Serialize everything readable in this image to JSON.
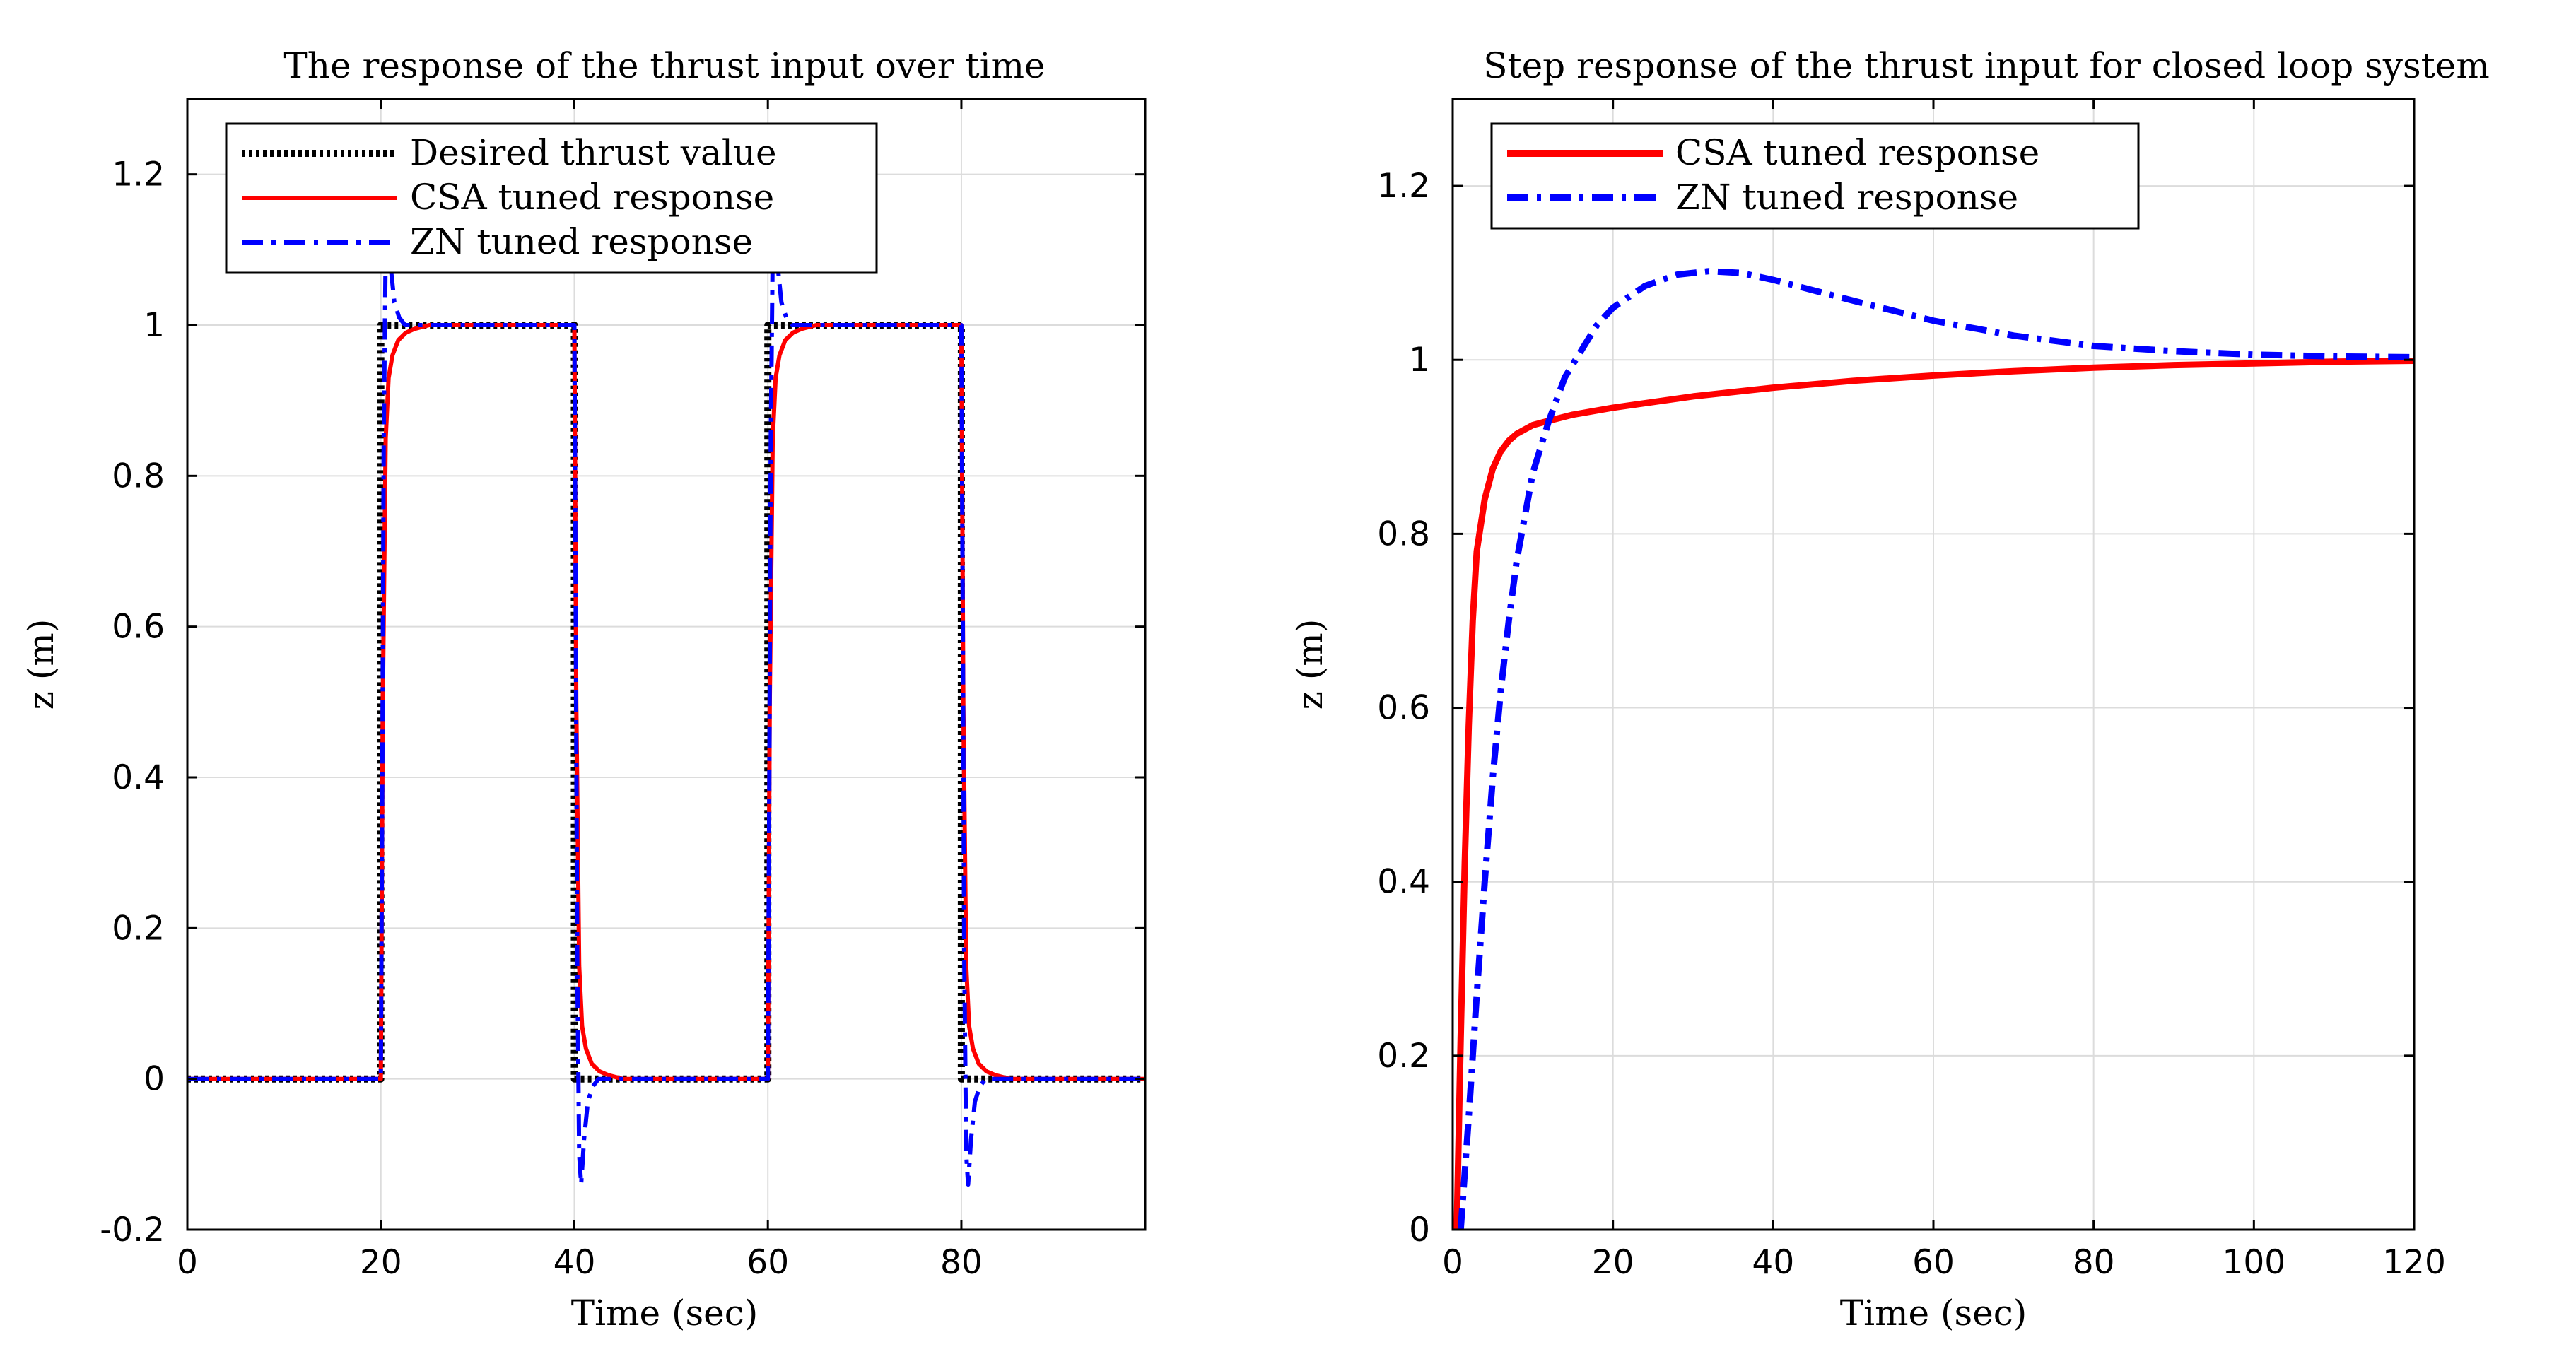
{
  "chart_data": [
    {
      "type": "line",
      "title": "The response of the thrust input over time",
      "xlabel": "Time (sec)",
      "ylabel": "z (m)",
      "xlim": [
        0,
        99
      ],
      "ylim": [
        -0.2,
        1.3
      ],
      "xticks": [
        0,
        20,
        40,
        60,
        80
      ],
      "xtick_labels": [
        "0",
        "20",
        "40",
        "60",
        "80"
      ],
      "yticks": [
        -0.2,
        0,
        0.2,
        0.4,
        0.6,
        0.8,
        1,
        1.2
      ],
      "ytick_labels": [
        "-0.2",
        "0",
        "0.2",
        "0.4",
        "0.6",
        "0.8",
        "1",
        "1.2"
      ],
      "grid": true,
      "legend_position": "top-left",
      "series": [
        {
          "name": "Desired thrust value",
          "color": "#000000",
          "style": "dotted",
          "x": [
            0,
            20,
            20,
            40,
            40,
            60,
            60,
            80,
            80,
            99
          ],
          "y": [
            0,
            0,
            1,
            1,
            0,
            0,
            1,
            1,
            0,
            0
          ]
        },
        {
          "name": "CSA tuned response",
          "color": "#ff0000",
          "style": "solid",
          "x": [
            0,
            20,
            20.2,
            20.5,
            20.8,
            21.2,
            21.8,
            22.6,
            23.5,
            25,
            40,
            40.2,
            40.5,
            40.8,
            41.2,
            41.8,
            42.6,
            43.5,
            45,
            60,
            60.2,
            60.5,
            60.8,
            61.2,
            61.8,
            62.6,
            63.5,
            65,
            80,
            80.2,
            80.5,
            80.8,
            81.2,
            81.8,
            82.6,
            83.5,
            85,
            99
          ],
          "y": [
            0,
            0,
            0.5,
            0.85,
            0.93,
            0.96,
            0.98,
            0.99,
            0.995,
            1,
            1,
            0.5,
            0.15,
            0.07,
            0.04,
            0.02,
            0.01,
            0.005,
            0,
            0,
            0.5,
            0.85,
            0.93,
            0.96,
            0.98,
            0.99,
            0.995,
            1,
            1,
            0.5,
            0.15,
            0.07,
            0.04,
            0.02,
            0.01,
            0.005,
            0,
            0
          ]
        },
        {
          "name": "ZN tuned response",
          "color": "#0000ff",
          "style": "dashdot",
          "x": [
            0,
            20,
            20.15,
            20.3,
            20.5,
            20.7,
            21.0,
            21.4,
            21.9,
            22.5,
            23.5,
            40,
            40.15,
            40.3,
            40.5,
            40.7,
            41.0,
            41.4,
            41.9,
            42.5,
            43.5,
            60,
            60.15,
            60.3,
            60.5,
            60.7,
            61.0,
            61.4,
            61.9,
            62.5,
            63.5,
            80,
            80.15,
            80.3,
            80.5,
            80.7,
            81.0,
            81.4,
            81.9,
            82.5,
            83.5,
            99
          ],
          "y": [
            0,
            0,
            0.4,
            0.85,
            1.1,
            1.14,
            1.08,
            1.03,
            1.01,
            1.0,
            1.0,
            1.0,
            0.6,
            0.15,
            -0.1,
            -0.14,
            -0.08,
            -0.03,
            -0.01,
            0,
            0,
            0,
            0.4,
            0.85,
            1.1,
            1.14,
            1.08,
            1.03,
            1.01,
            1.0,
            1.0,
            1.0,
            0.6,
            0.15,
            -0.1,
            -0.14,
            -0.08,
            -0.03,
            -0.01,
            0,
            0,
            0
          ]
        }
      ]
    },
    {
      "type": "line",
      "title": "Step response of the thrust input for closed loop system",
      "xlabel": "Time (sec)",
      "ylabel": "z (m)",
      "xlim": [
        0,
        120
      ],
      "ylim": [
        0,
        1.3
      ],
      "xticks": [
        0,
        20,
        40,
        60,
        80,
        100,
        120
      ],
      "xtick_labels": [
        "0",
        "20",
        "40",
        "60",
        "80",
        "100",
        "120"
      ],
      "yticks": [
        0,
        0.2,
        0.4,
        0.6,
        0.8,
        1,
        1.2
      ],
      "ytick_labels": [
        "0",
        "0.2",
        "0.4",
        "0.6",
        "0.8",
        "1",
        "1.2"
      ],
      "grid": true,
      "legend_position": "top-left",
      "series": [
        {
          "name": "CSA tuned response",
          "color": "#ff0000",
          "style": "solid",
          "x": [
            0.5,
            1,
            1.5,
            2,
            2.5,
            3,
            4,
            5,
            6,
            7,
            8,
            10,
            12,
            15,
            20,
            30,
            40,
            50,
            60,
            70,
            80,
            90,
            100,
            110,
            120
          ],
          "y": [
            0,
            0.22,
            0.42,
            0.58,
            0.7,
            0.78,
            0.84,
            0.875,
            0.895,
            0.907,
            0.915,
            0.925,
            0.93,
            0.937,
            0.945,
            0.958,
            0.968,
            0.976,
            0.982,
            0.987,
            0.991,
            0.994,
            0.996,
            0.998,
            0.999
          ]
        },
        {
          "name": "ZN tuned response",
          "color": "#0000ff",
          "style": "dashdot",
          "x": [
            1,
            2,
            3,
            4,
            5,
            6,
            7,
            8,
            10,
            12,
            14,
            16,
            18,
            20,
            24,
            28,
            32,
            36,
            40,
            50,
            60,
            70,
            80,
            90,
            100,
            110,
            120
          ],
          "y": [
            0,
            0.13,
            0.27,
            0.4,
            0.52,
            0.62,
            0.7,
            0.77,
            0.87,
            0.93,
            0.98,
            1.01,
            1.04,
            1.06,
            1.085,
            1.098,
            1.102,
            1.1,
            1.092,
            1.068,
            1.045,
            1.028,
            1.016,
            1.01,
            1.006,
            1.004,
            1.003
          ]
        }
      ]
    }
  ]
}
